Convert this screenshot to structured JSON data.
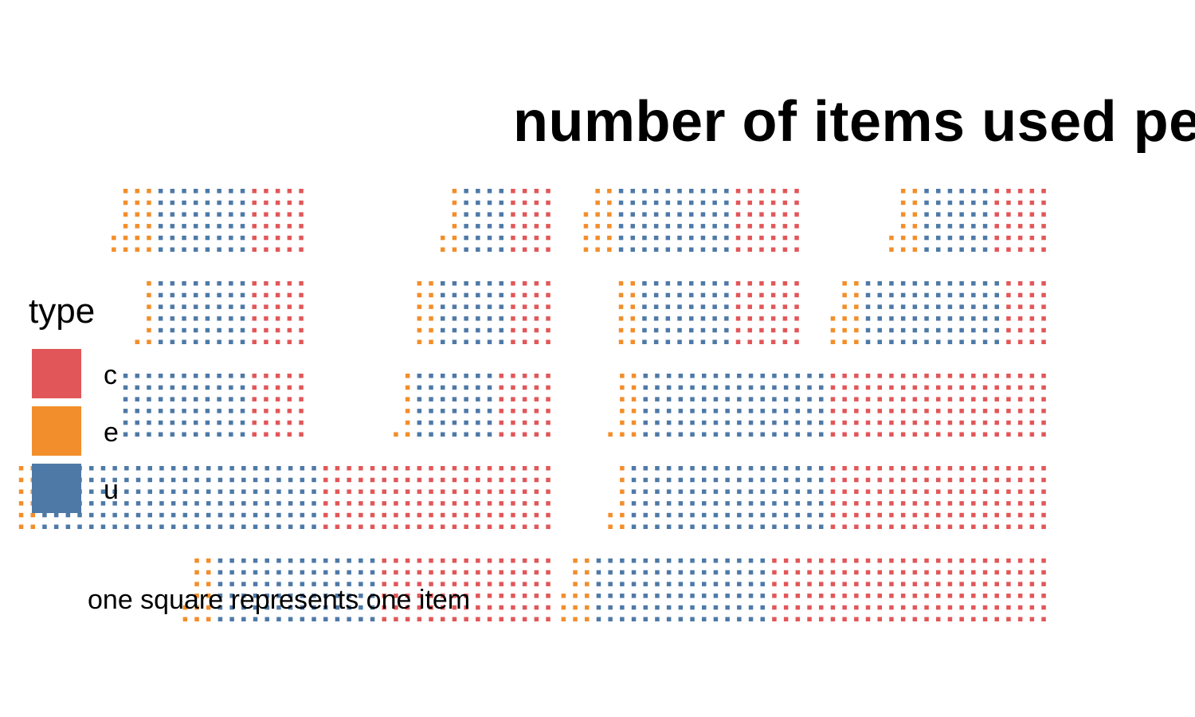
{
  "chart_data": {
    "type": "waffle",
    "title": "number of items used pe",
    "caption": "one square represents one item",
    "legend": {
      "title": "type",
      "placement": "left",
      "entries": [
        {
          "key": "c",
          "color": "#e15759"
        },
        {
          "key": "e",
          "color": "#f28e2b"
        },
        {
          "key": "u",
          "color": "#4e79a7"
        }
      ]
    },
    "rows_per_column": 6,
    "panels": [
      {
        "row": 1,
        "col": 1,
        "e": 20,
        "u": 48,
        "c": 30
      },
      {
        "row": 1,
        "col": 2,
        "e": 8,
        "u": 24,
        "c": 24
      },
      {
        "row": 1,
        "col": 3,
        "e": 16,
        "u": 60,
        "c": 36
      },
      {
        "row": 1,
        "col": 4,
        "e": 14,
        "u": 36,
        "c": 30
      },
      {
        "row": 2,
        "col": 1,
        "e": 7,
        "u": 48,
        "c": 30
      },
      {
        "row": 2,
        "col": 2,
        "e": 12,
        "u": 36,
        "c": 24
      },
      {
        "row": 2,
        "col": 3,
        "e": 12,
        "u": 48,
        "c": 36
      },
      {
        "row": 2,
        "col": 4,
        "e": 15,
        "u": 72,
        "c": 24
      },
      {
        "row": 3,
        "col": 1,
        "e": 0,
        "u": 66,
        "c": 30
      },
      {
        "row": 3,
        "col": 2,
        "e": 7,
        "u": 42,
        "c": 30
      },
      {
        "row": 3,
        "col": 3,
        "e": 13,
        "u": 96,
        "c": 114
      },
      {
        "row": 4,
        "col": 1,
        "e": 12,
        "u": 144,
        "c": 120
      },
      {
        "row": 4,
        "col": 3,
        "e": 8,
        "u": 102,
        "c": 114
      },
      {
        "row": 5,
        "col": 1,
        "e": 14,
        "u": 84,
        "c": 90
      },
      {
        "row": 5,
        "col": 3,
        "e": 15,
        "u": 90,
        "c": 144
      }
    ]
  }
}
